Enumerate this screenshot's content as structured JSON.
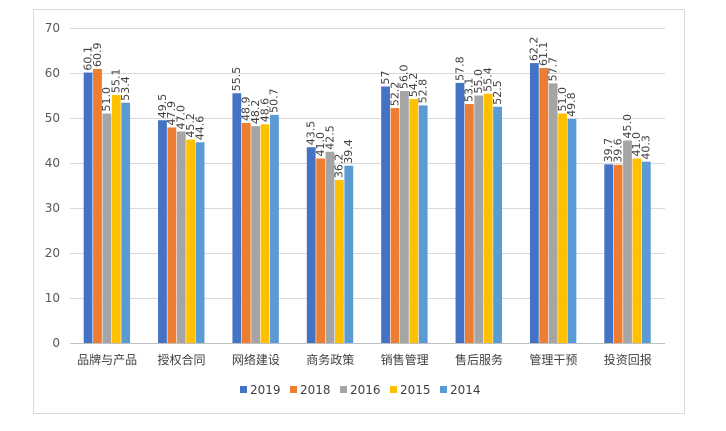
{
  "chart_data": {
    "type": "bar",
    "categories": [
      "品牌与产品",
      "授权合同",
      "网络建设",
      "商务政策",
      "销售管理",
      "售后服务",
      "管理干预",
      "投资回报"
    ],
    "series": [
      {
        "name": "2019",
        "color": "#4472C4",
        "values": [
          60.1,
          49.5,
          55.5,
          43.5,
          57,
          57.8,
          62.2,
          39.7
        ],
        "labels": [
          "60.1",
          "49.5",
          "55.5",
          "43.5",
          "57",
          "57.8",
          "62.2",
          "39.7"
        ]
      },
      {
        "name": "2018",
        "color": "#ED7D31",
        "values": [
          60.9,
          47.9,
          48.9,
          41.0,
          52.2,
          53.1,
          61.1,
          39.6
        ],
        "labels": [
          "60.9",
          "47.9",
          "48.9",
          "41.0",
          "52.2",
          "53.1",
          "61.1",
          "39.6"
        ]
      },
      {
        "name": "2016",
        "color": "#A5A5A5",
        "values": [
          51.0,
          47.0,
          48.2,
          42.5,
          56.0,
          55.0,
          57.7,
          45.0
        ],
        "labels": [
          "51.0",
          "47.0",
          "48.2",
          "42.5",
          "56.0",
          "55.0",
          "57.7",
          "45.0"
        ]
      },
      {
        "name": "2015",
        "color": "#FFC000",
        "values": [
          55.1,
          45.2,
          48.6,
          36.2,
          54.2,
          55.4,
          51.0,
          41.0
        ],
        "labels": [
          "55.1",
          "45.2",
          "48.6",
          "36.2",
          "54.2",
          "55.4",
          "51.0",
          "41.0"
        ]
      },
      {
        "name": "2014",
        "color": "#5B9BD5",
        "values": [
          53.4,
          44.6,
          50.7,
          39.4,
          52.8,
          52.5,
          49.8,
          40.3
        ],
        "labels": [
          "53.4",
          "44.6",
          "50.7",
          "39.4",
          "52.8",
          "52.5",
          "49.8",
          "40.3"
        ]
      }
    ],
    "yticks": [
      "0",
      "10",
      "20",
      "30",
      "40",
      "50",
      "60",
      "70"
    ],
    "ylim": [
      0,
      70
    ],
    "grid": true,
    "legend": "bottom"
  }
}
